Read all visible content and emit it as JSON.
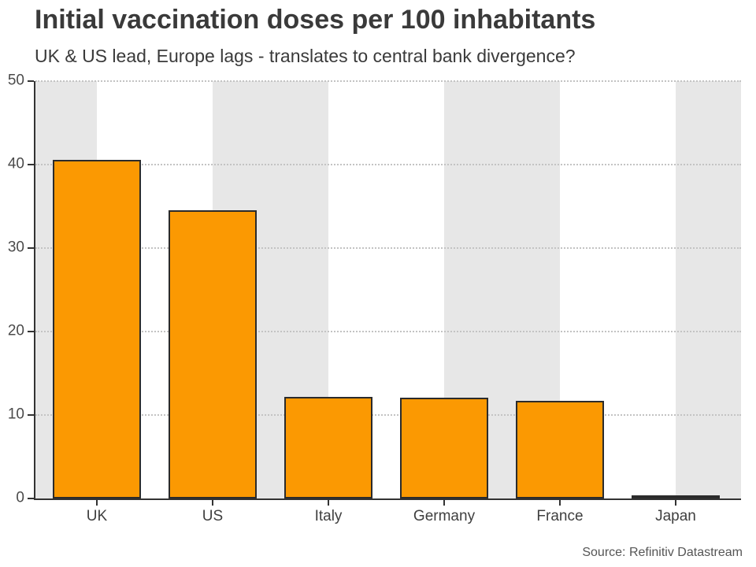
{
  "header": {
    "title": "Initial vaccination doses per 100 inhabitants",
    "subtitle": "UK & US lead, Europe lags - translates to central bank divergence?"
  },
  "footer": {
    "source_label": "Source: Refinitiv Datastream"
  },
  "chart_data": {
    "type": "bar",
    "title": "Initial vaccination doses per 100 inhabitants",
    "subtitle": "UK & US lead, Europe lags - translates to central bank divergence?",
    "categories": [
      "UK",
      "US",
      "Italy",
      "Germany",
      "France",
      "Japan"
    ],
    "values": [
      40.6,
      34.5,
      12.2,
      12.1,
      11.7,
      0.4
    ],
    "xlabel": "",
    "ylabel": "",
    "ylim": [
      0,
      50
    ],
    "yticks": [
      0,
      10,
      20,
      30,
      40,
      50
    ],
    "grid": "horizontal, dotted, behind bars",
    "legend": "none",
    "background_bands": "alternating vertical stripes between category centers",
    "colors": {
      "bar_fill": "#FB9902",
      "bar_border": "#2B2B2B",
      "band_gray": "#E7E7E7",
      "gridline": "#C3C3C3",
      "axis": "#333333",
      "text": "#3A3A3A"
    },
    "source_label": "Source: Refinitiv Datastream"
  }
}
